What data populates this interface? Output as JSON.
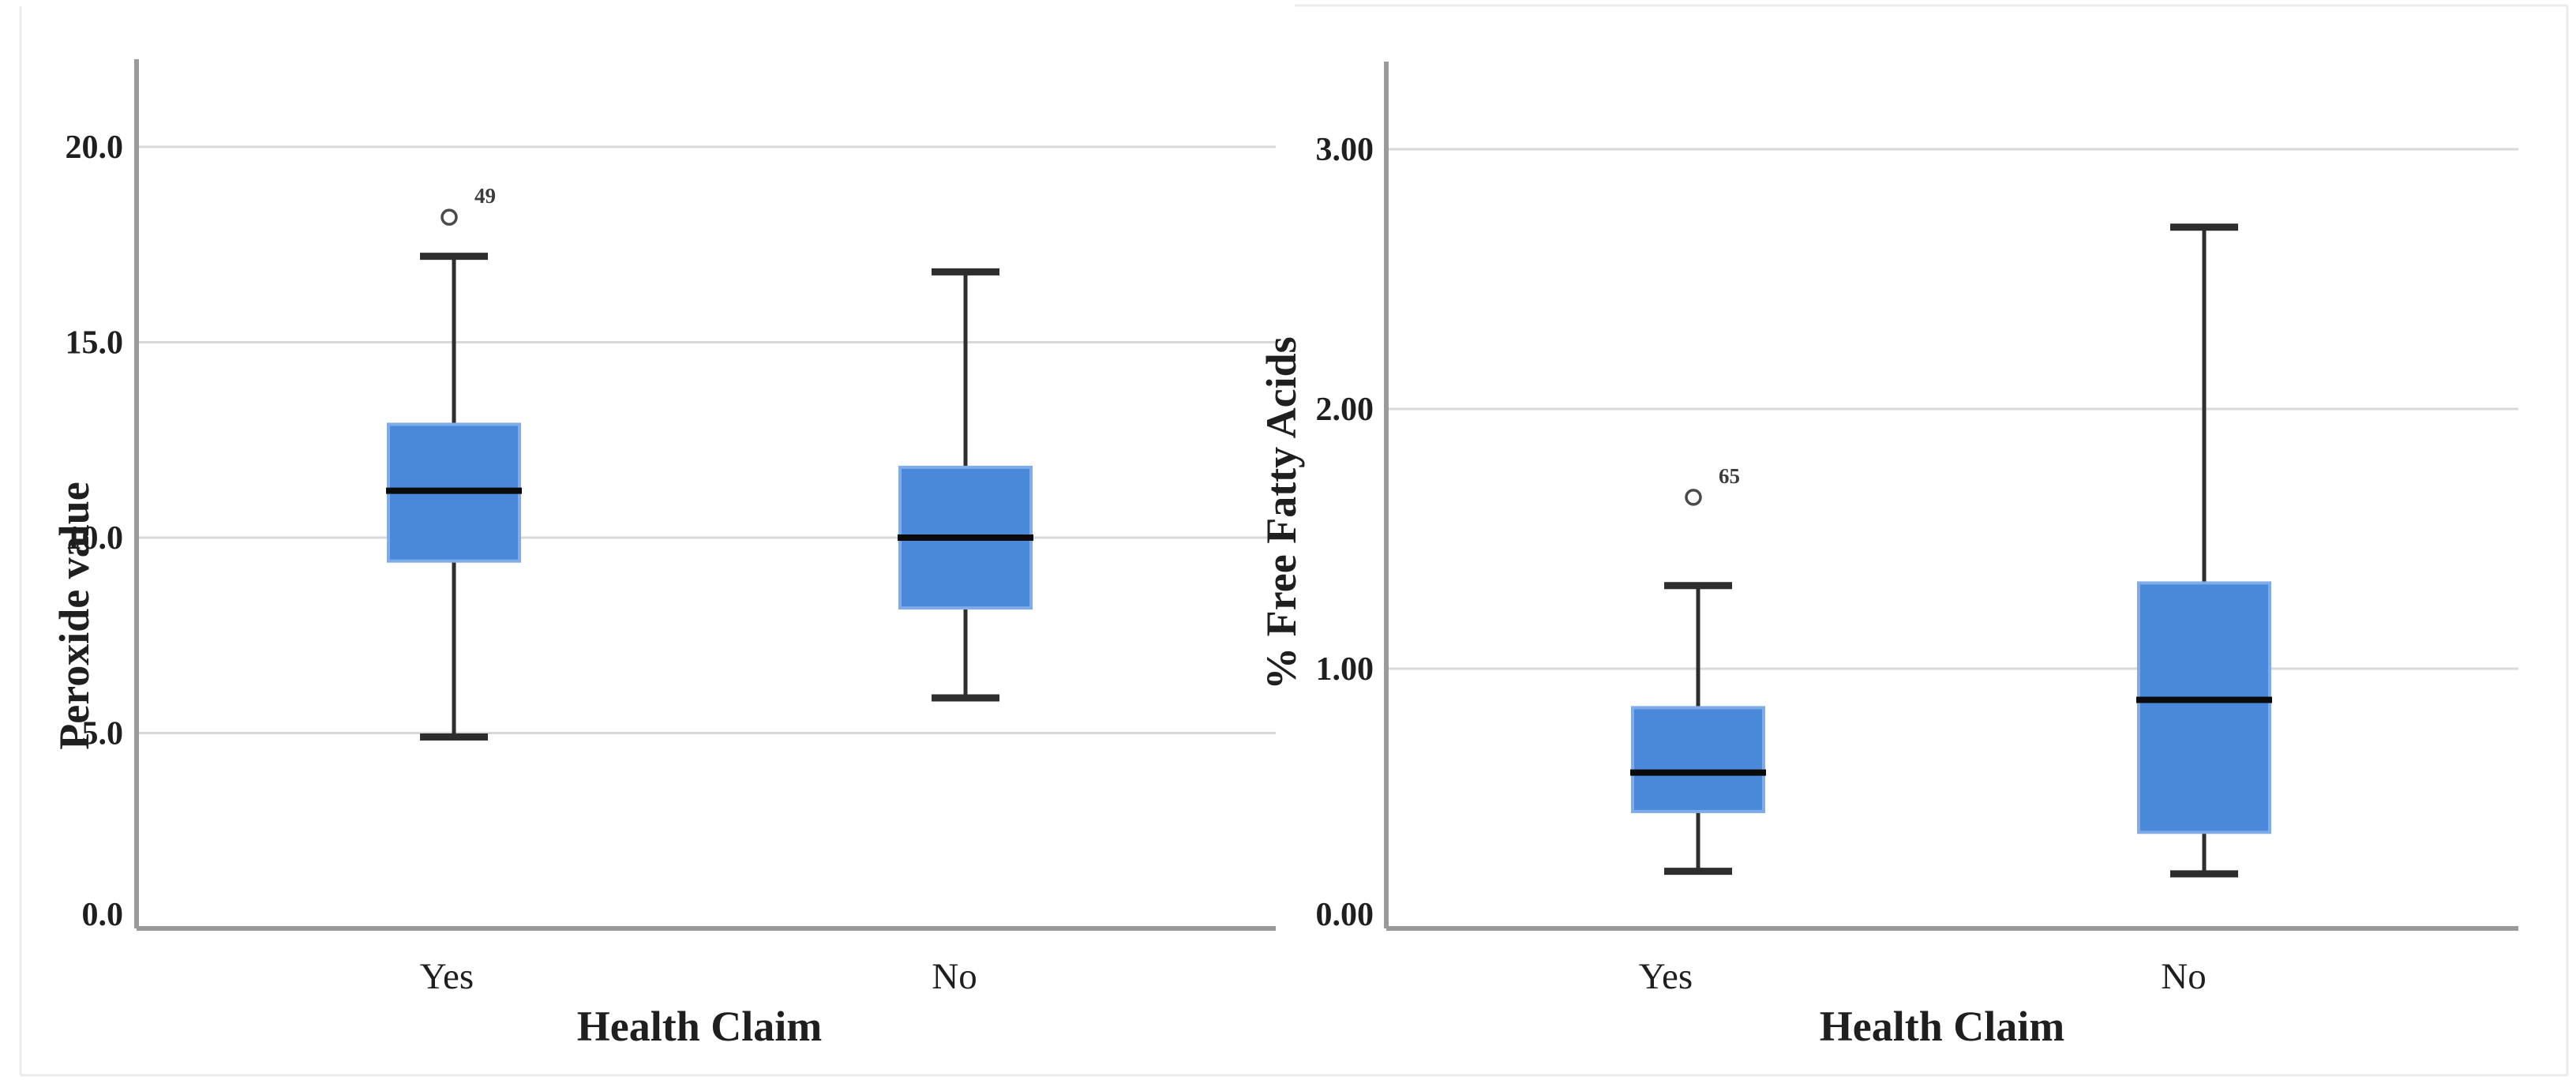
{
  "figure": {
    "description": "Two side-by-side boxplot panels comparing oils with and without a health claim",
    "colors": {
      "box_fill": "#4a88da",
      "box_stroke": "#7fabe8",
      "median_line": "#0a0a0a",
      "whisker": "#2e2e2e",
      "gridline": "#d9d9d9",
      "axis_line": "#9a9a9a",
      "outlier_stroke": "#4a4a4a",
      "panel_border": "#ebebeb",
      "background": "#ffffff"
    }
  },
  "chart_data": [
    {
      "type": "boxplot",
      "panel": "left",
      "ylabel": "Peroxide value",
      "xlabel": "Health Claim",
      "categories": [
        "Yes",
        "No"
      ],
      "yticks": [
        0.0,
        5.0,
        10.0,
        15.0,
        20.0
      ],
      "ytick_labels": [
        "0.0",
        "5.0",
        "10.0",
        "15.0",
        "20.0"
      ],
      "ylim": [
        0,
        22.2
      ],
      "grid": true,
      "boxes": [
        {
          "category": "Yes",
          "whisker_min": 4.9,
          "q1": 9.4,
          "median": 11.2,
          "q3": 12.9,
          "whisker_max": 17.2,
          "outliers": [
            {
              "value": 18.2,
              "label": "49"
            }
          ]
        },
        {
          "category": "No",
          "whisker_min": 5.9,
          "q1": 8.2,
          "median": 10.0,
          "q3": 11.8,
          "whisker_max": 16.8,
          "outliers": []
        }
      ]
    },
    {
      "type": "boxplot",
      "panel": "right",
      "ylabel": "% Free Fatty Acids",
      "xlabel": "Health Claim",
      "categories": [
        "Yes",
        "No"
      ],
      "yticks": [
        0.0,
        1.0,
        2.0,
        3.0
      ],
      "ytick_labels": [
        "0.00",
        "1.00",
        "2.00",
        "3.00"
      ],
      "ylim": [
        0,
        3.35
      ],
      "grid": true,
      "boxes": [
        {
          "category": "Yes",
          "whisker_min": 0.22,
          "q1": 0.45,
          "median": 0.6,
          "q3": 0.85,
          "whisker_max": 1.32,
          "outliers": [
            {
              "value": 1.66,
              "label": "65"
            }
          ]
        },
        {
          "category": "No",
          "whisker_min": 0.21,
          "q1": 0.37,
          "median": 0.88,
          "q3": 1.33,
          "whisker_max": 2.7,
          "outliers": []
        }
      ]
    }
  ]
}
